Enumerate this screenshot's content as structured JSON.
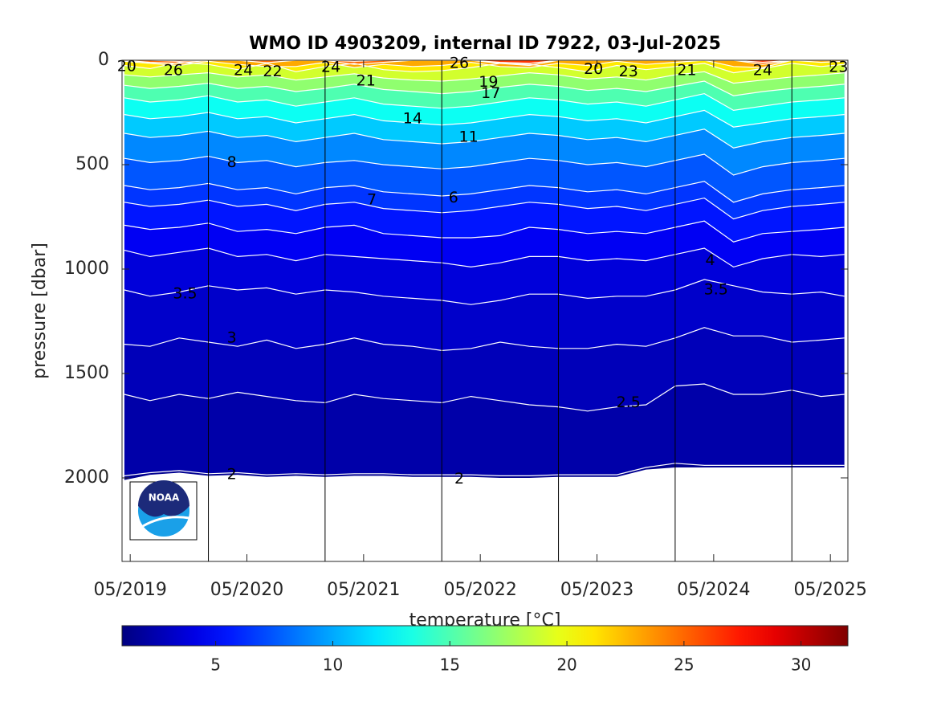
{
  "chart_data": {
    "type": "contour",
    "title": "WMO ID 4903209, internal ID 7922, 03-Jul-2025",
    "ylabel": "pressure [dbar]",
    "colorbar_label": "temperature [°C]",
    "logo_text": "NOAA",
    "colormap": "jet",
    "xlim": [
      2019.26,
      2025.48
    ],
    "xticks": [
      {
        "value": 2019.33,
        "label": "05/2019"
      },
      {
        "value": 2020.33,
        "label": "05/2020"
      },
      {
        "value": 2021.33,
        "label": "05/2021"
      },
      {
        "value": 2022.33,
        "label": "05/2022"
      },
      {
        "value": 2023.33,
        "label": "05/2023"
      },
      {
        "value": 2024.33,
        "label": "05/2024"
      },
      {
        "value": 2025.33,
        "label": "05/2025"
      }
    ],
    "ylim": [
      0,
      2400
    ],
    "yticks": [
      0,
      500,
      1000,
      1500,
      2000
    ],
    "clim": [
      1,
      32
    ],
    "cticks": [
      5,
      10,
      15,
      20,
      25,
      30
    ],
    "year_lines": [
      2020,
      2021,
      2022,
      2023,
      2024,
      2025
    ],
    "x": [
      2019.28,
      2019.5,
      2019.75,
      2020.0,
      2020.25,
      2020.5,
      2020.75,
      2021.0,
      2021.25,
      2021.5,
      2021.75,
      2022.0,
      2022.25,
      2022.5,
      2022.75,
      2023.0,
      2023.25,
      2023.5,
      2023.75,
      2024.0,
      2024.25,
      2024.5,
      2024.75,
      2025.0,
      2025.25,
      2025.45
    ],
    "max_pressure": [
      2010,
      1985,
      1975,
      1990,
      1985,
      1995,
      1990,
      1995,
      1990,
      1990,
      1995,
      1995,
      1995,
      2000,
      2000,
      1995,
      1995,
      1995,
      1960,
      1950,
      1950,
      1950,
      1950,
      1950,
      1950,
      1950
    ],
    "series": [
      {
        "level": 2,
        "values": [
          1990,
          1975,
          1965,
          1980,
          1975,
          1985,
          1980,
          1985,
          1980,
          1980,
          1985,
          1985,
          1985,
          1990,
          1990,
          1985,
          1985,
          1985,
          1950,
          1930,
          1940,
          1940,
          1940,
          1940,
          1940,
          1940
        ]
      },
      {
        "level": 2.5,
        "values": [
          1600,
          1630,
          1600,
          1620,
          1590,
          1610,
          1630,
          1640,
          1600,
          1620,
          1630,
          1640,
          1610,
          1630,
          1650,
          1660,
          1680,
          1660,
          1650,
          1560,
          1550,
          1600,
          1600,
          1580,
          1610,
          1600
        ]
      },
      {
        "level": 3,
        "values": [
          1360,
          1370,
          1330,
          1350,
          1370,
          1340,
          1380,
          1360,
          1330,
          1360,
          1370,
          1390,
          1380,
          1350,
          1370,
          1380,
          1380,
          1360,
          1370,
          1330,
          1280,
          1320,
          1320,
          1350,
          1340,
          1330
        ]
      },
      {
        "level": 3.5,
        "values": [
          1100,
          1130,
          1110,
          1080,
          1100,
          1090,
          1120,
          1100,
          1110,
          1130,
          1140,
          1150,
          1170,
          1150,
          1120,
          1120,
          1140,
          1130,
          1130,
          1100,
          1050,
          1080,
          1110,
          1120,
          1110,
          1130
        ]
      },
      {
        "level": 4,
        "values": [
          910,
          940,
          920,
          900,
          940,
          930,
          960,
          930,
          940,
          950,
          960,
          970,
          990,
          970,
          940,
          940,
          960,
          950,
          960,
          930,
          900,
          990,
          950,
          930,
          940,
          930
        ]
      },
      {
        "level": 5,
        "values": [
          790,
          810,
          800,
          780,
          820,
          810,
          830,
          800,
          790,
          830,
          840,
          850,
          850,
          840,
          800,
          810,
          830,
          820,
          830,
          800,
          770,
          870,
          830,
          820,
          810,
          800
        ]
      },
      {
        "level": 6,
        "values": [
          680,
          700,
          690,
          670,
          700,
          690,
          720,
          690,
          680,
          710,
          720,
          730,
          720,
          700,
          680,
          690,
          710,
          700,
          720,
          690,
          660,
          760,
          720,
          700,
          690,
          680
        ]
      },
      {
        "level": 7,
        "values": [
          600,
          620,
          610,
          590,
          620,
          610,
          640,
          610,
          600,
          630,
          640,
          650,
          640,
          620,
          600,
          610,
          630,
          620,
          640,
          610,
          580,
          680,
          640,
          620,
          610,
          600
        ]
      },
      {
        "level": 8,
        "values": [
          470,
          490,
          480,
          460,
          490,
          480,
          510,
          490,
          480,
          500,
          510,
          520,
          510,
          490,
          470,
          480,
          500,
          490,
          510,
          480,
          450,
          550,
          510,
          490,
          480,
          470
        ]
      },
      {
        "level": 10,
        "values": [
          350,
          370,
          360,
          340,
          370,
          360,
          390,
          370,
          350,
          380,
          390,
          400,
          390,
          370,
          350,
          360,
          380,
          370,
          390,
          360,
          330,
          420,
          390,
          370,
          360,
          350
        ]
      },
      {
        "level": 12,
        "values": [
          260,
          280,
          270,
          250,
          280,
          270,
          300,
          280,
          260,
          290,
          300,
          310,
          300,
          280,
          260,
          270,
          290,
          280,
          300,
          270,
          240,
          320,
          300,
          280,
          270,
          260
        ]
      },
      {
        "level": 14,
        "values": [
          180,
          200,
          190,
          170,
          200,
          190,
          220,
          200,
          180,
          210,
          220,
          230,
          220,
          200,
          180,
          190,
          210,
          200,
          220,
          190,
          160,
          240,
          220,
          200,
          190,
          180
        ]
      },
      {
        "level": 16,
        "values": [
          120,
          135,
          125,
          110,
          135,
          125,
          150,
          135,
          115,
          140,
          150,
          160,
          150,
          130,
          115,
          125,
          145,
          135,
          150,
          125,
          100,
          170,
          150,
          135,
          125,
          115
        ]
      },
      {
        "level": 18,
        "values": [
          70,
          80,
          70,
          60,
          80,
          70,
          95,
          80,
          65,
          85,
          95,
          100,
          90,
          75,
          60,
          70,
          90,
          80,
          95,
          70,
          55,
          110,
          95,
          80,
          70,
          60
        ]
      },
      {
        "level": 20,
        "values": [
          25,
          40,
          10,
          20,
          45,
          15,
          55,
          30,
          15,
          45,
          55,
          50,
          35,
          15,
          20,
          35,
          55,
          25,
          45,
          30,
          15,
          60,
          40,
          15,
          30,
          20
        ]
      },
      {
        "level": 22,
        "values": [
          5,
          15,
          25,
          5,
          20,
          30,
          30,
          10,
          35,
          20,
          30,
          25,
          10,
          30,
          35,
          15,
          25,
          5,
          20,
          10,
          0,
          30,
          35,
          0,
          10,
          5
        ]
      },
      {
        "level": 24,
        "values": [
          0,
          10,
          15,
          0,
          0,
          12,
          0,
          0,
          20,
          10,
          0,
          0,
          0,
          15,
          25,
          0,
          0,
          0,
          0,
          0,
          0,
          0,
          20,
          0,
          0,
          0
        ]
      },
      {
        "level": 26,
        "values": [
          0,
          0,
          5,
          0,
          0,
          0,
          0,
          0,
          5,
          0,
          0,
          0,
          0,
          10,
          15,
          0,
          0,
          0,
          0,
          0,
          0,
          0,
          10,
          0,
          0,
          0
        ]
      }
    ],
    "contour_labels": [
      {
        "level": 20,
        "x": 2019.3,
        "p": 30
      },
      {
        "level": 26,
        "x": 2019.7,
        "p": 50
      },
      {
        "level": 24,
        "x": 2020.3,
        "p": 50
      },
      {
        "level": 22,
        "x": 2020.55,
        "p": 55
      },
      {
        "level": 24,
        "x": 2021.05,
        "p": 35
      },
      {
        "level": 21,
        "x": 2021.35,
        "p": 100
      },
      {
        "level": 26,
        "x": 2022.15,
        "p": 15
      },
      {
        "level": 19,
        "x": 2022.4,
        "p": 105
      },
      {
        "level": 17,
        "x": 2022.42,
        "p": 160
      },
      {
        "level": 14,
        "x": 2021.75,
        "p": 280
      },
      {
        "level": 11,
        "x": 2022.23,
        "p": 370
      },
      {
        "level": 8,
        "x": 2020.2,
        "p": 490
      },
      {
        "level": 6,
        "x": 2022.1,
        "p": 660
      },
      {
        "level": 7,
        "x": 2021.4,
        "p": 670
      },
      {
        "level": 4,
        "x": 2024.3,
        "p": 960
      },
      {
        "level": 3.5,
        "x": 2024.35,
        "p": 1100
      },
      {
        "level": 3.5,
        "x": 2019.8,
        "p": 1120
      },
      {
        "level": 3,
        "x": 2020.2,
        "p": 1330
      },
      {
        "level": 2.5,
        "x": 2023.6,
        "p": 1640
      },
      {
        "level": 2,
        "x": 2020.2,
        "p": 1985
      },
      {
        "level": 2,
        "x": 2022.15,
        "p": 2005
      },
      {
        "level": 20,
        "x": 2023.3,
        "p": 45
      },
      {
        "level": 23,
        "x": 2023.6,
        "p": 55
      },
      {
        "level": 21,
        "x": 2024.1,
        "p": 50
      },
      {
        "level": 24,
        "x": 2024.75,
        "p": 50
      },
      {
        "level": 23,
        "x": 2025.4,
        "p": 35
      }
    ]
  }
}
